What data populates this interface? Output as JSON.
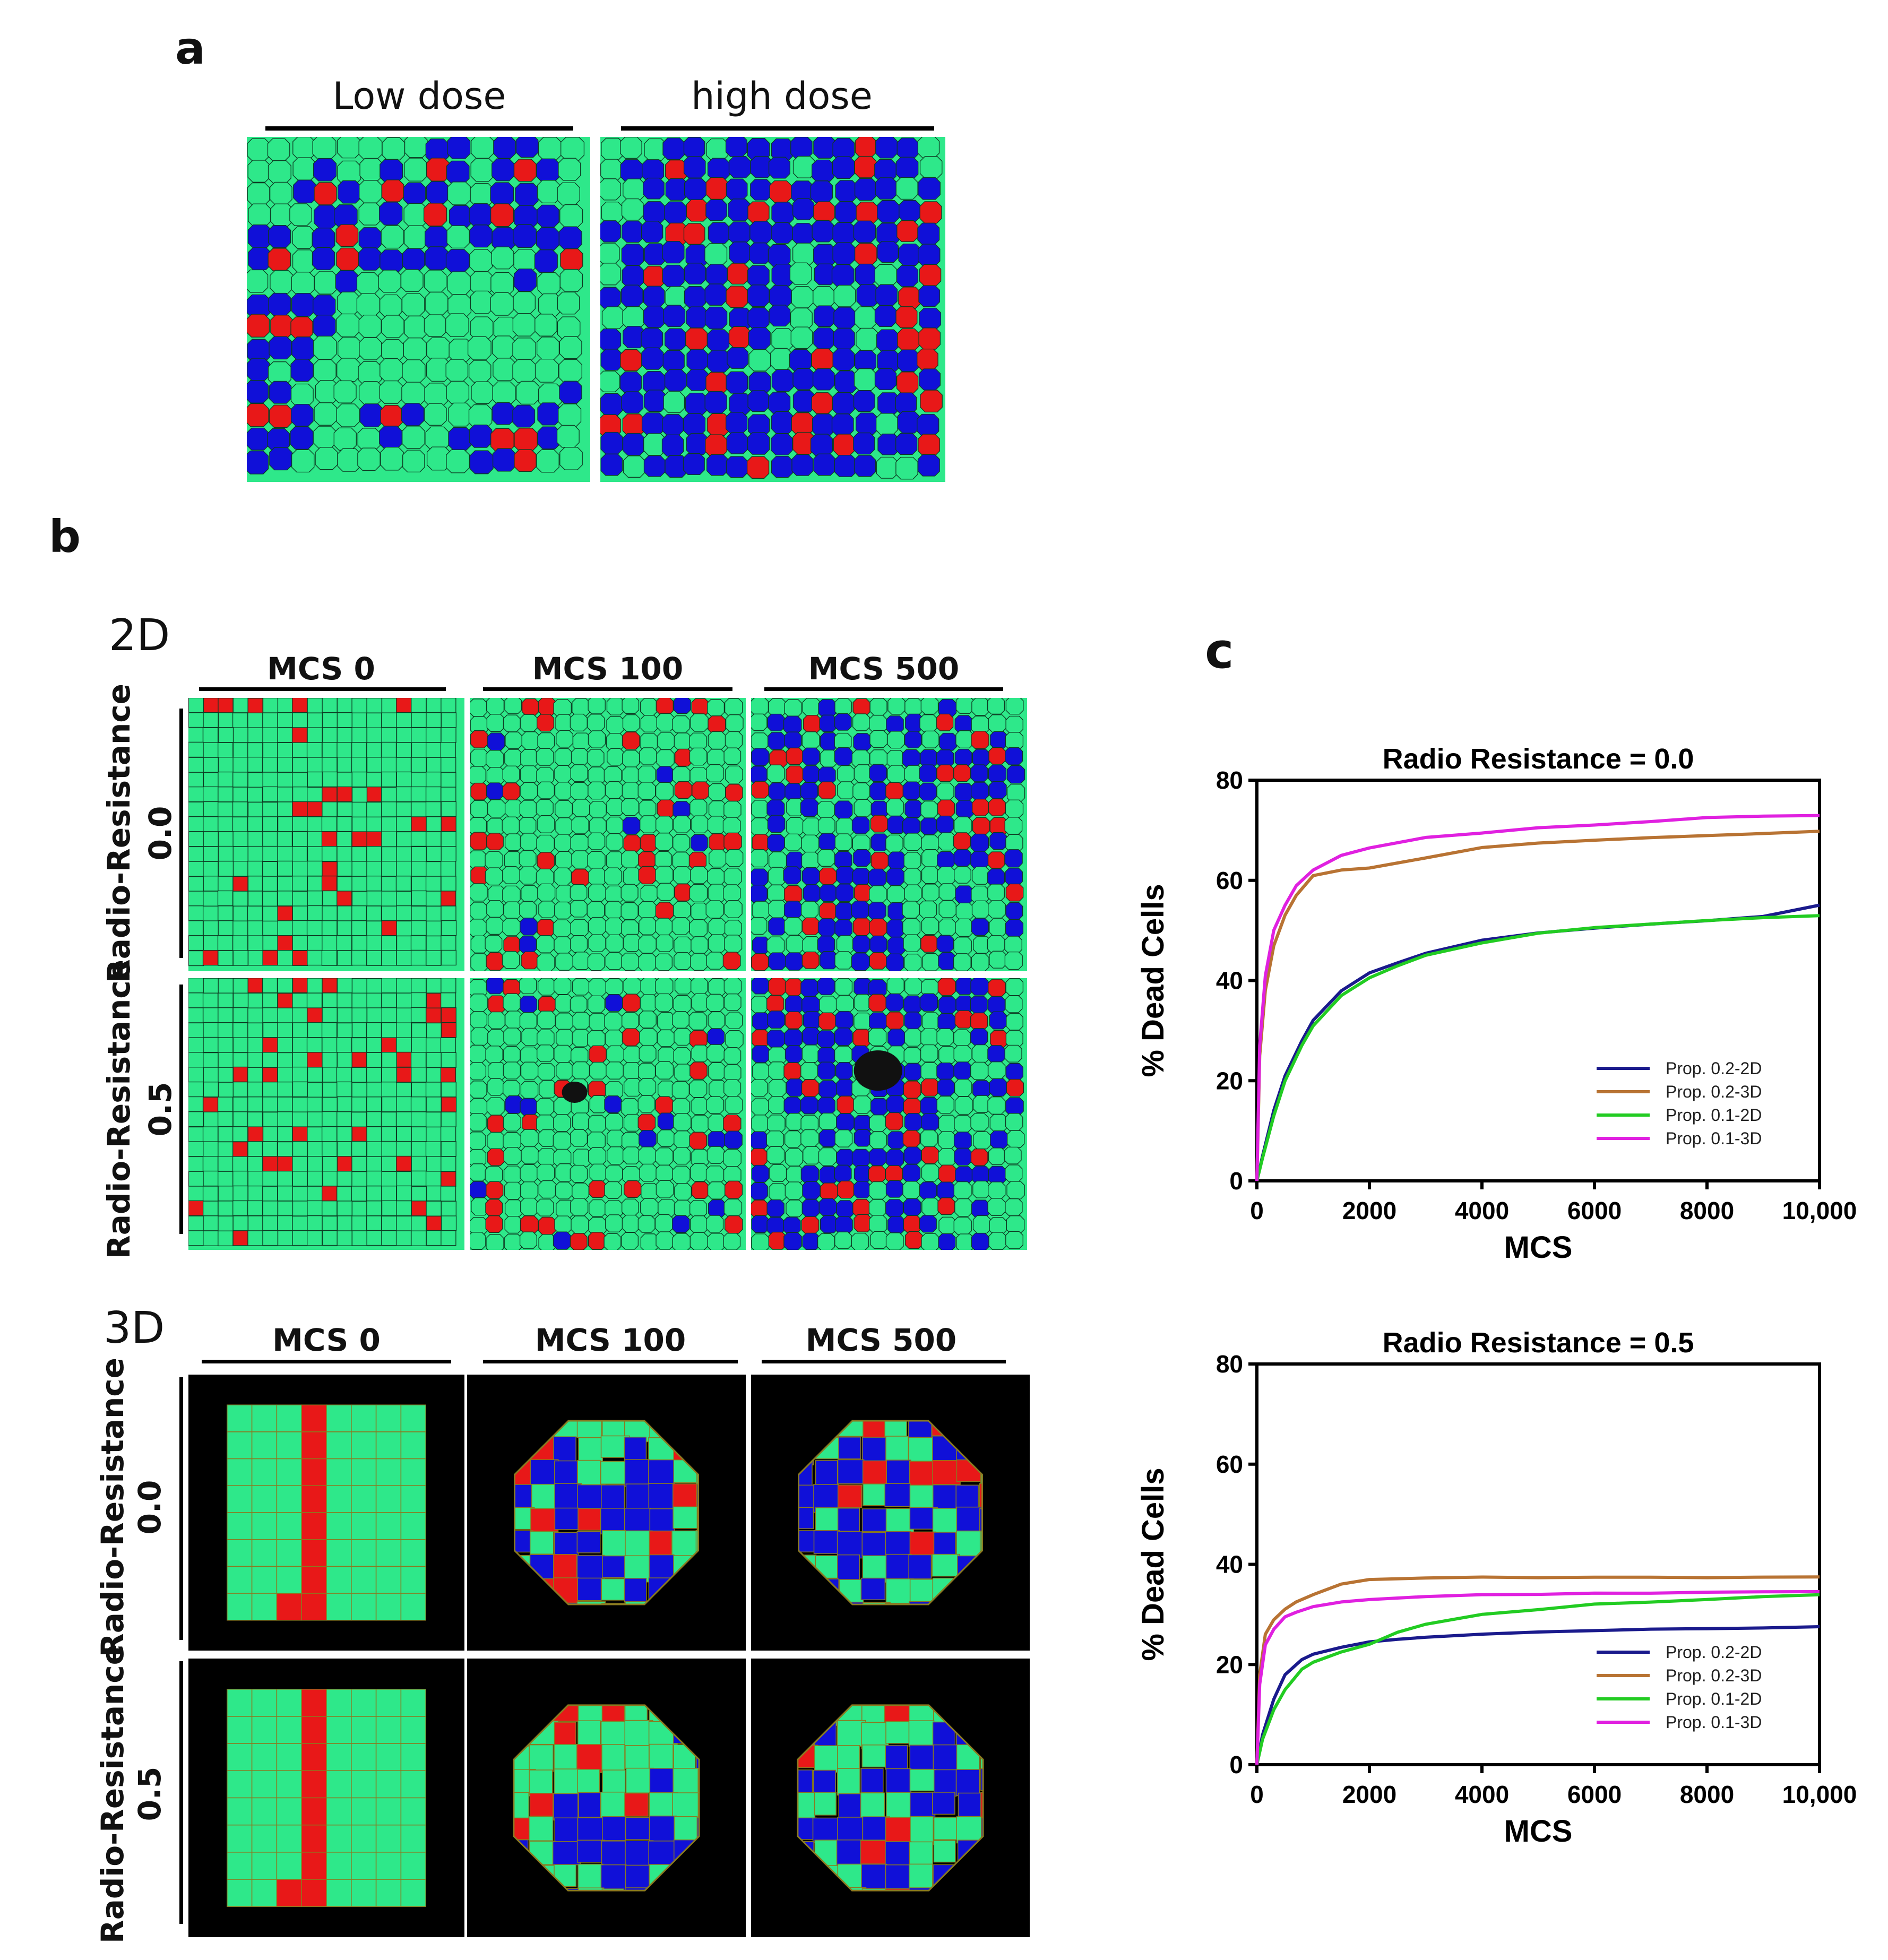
{
  "panels": {
    "a": {
      "letter": "a",
      "conditions": [
        "Low dose",
        "high dose"
      ]
    },
    "b": {
      "letter": "b",
      "dim_2d": "2D",
      "dim_3d": "3D",
      "columns": [
        "MCS 0",
        "MCS 100",
        "MCS 500"
      ],
      "rows": [
        {
          "label": "Radio-Resistance",
          "value": "0.0"
        },
        {
          "label": "Radio-Resistance",
          "value": "0.5"
        }
      ]
    },
    "c": {
      "letter": "c"
    }
  },
  "colors": {
    "healthy": "#2ee88a",
    "damaged": "#1010d8",
    "dead": "#e81818",
    "background_3d": "#000000",
    "prop_02_2d": "#1a1a8c",
    "prop_02_3d": "#b87333",
    "prop_01_2d": "#22cc22",
    "prop_01_3d": "#e020e0"
  },
  "chart_data": [
    {
      "type": "line",
      "title": "Radio Resistance = 0.0",
      "xlabel": "MCS",
      "ylabel": "% Dead Cells",
      "xlim": [
        0,
        10000
      ],
      "ylim": [
        0,
        80
      ],
      "xticks": [
        "0",
        "2000",
        "4000",
        "6000",
        "8000",
        "10,000"
      ],
      "xtick_values": [
        0,
        2000,
        4000,
        6000,
        8000,
        10000
      ],
      "yticks": [
        "0",
        "20",
        "40",
        "60",
        "80"
      ],
      "ytick_values": [
        0,
        20,
        40,
        60,
        80
      ],
      "legend_position": "bottom-right",
      "series": [
        {
          "name": "Prop. 0.2-2D",
          "color": "#1a1a8c",
          "x": [
            0,
            100,
            300,
            500,
            800,
            1000,
            1500,
            2000,
            2500,
            3000,
            4000,
            5000,
            6000,
            7000,
            8000,
            9000,
            10000
          ],
          "y": [
            0,
            5,
            14,
            21,
            28,
            32,
            38,
            41.5,
            43.5,
            45.5,
            48,
            49.5,
            50.5,
            51.2,
            52,
            52.8,
            55
          ]
        },
        {
          "name": "Prop. 0.2-3D",
          "color": "#b87333",
          "x": [
            0,
            50,
            150,
            300,
            500,
            700,
            1000,
            1500,
            2000,
            3000,
            4000,
            5000,
            6000,
            7000,
            8000,
            9000,
            10000
          ],
          "y": [
            0,
            25,
            38,
            47,
            53,
            57,
            61,
            62,
            62.5,
            64.5,
            66.5,
            67.5,
            68,
            68.5,
            69,
            69.3,
            69.8
          ]
        },
        {
          "name": "Prop. 0.1-2D",
          "color": "#22cc22",
          "x": [
            0,
            100,
            300,
            500,
            800,
            1000,
            1500,
            2000,
            2500,
            3000,
            4000,
            5000,
            6000,
            7000,
            8000,
            9000,
            10000
          ],
          "y": [
            0,
            4.5,
            13,
            20,
            27,
            31,
            37,
            40.5,
            43,
            45,
            47.5,
            49.5,
            50.5,
            51.3,
            52,
            52.5,
            53
          ]
        },
        {
          "name": "Prop. 0.1-3D",
          "color": "#e020e0",
          "x": [
            0,
            50,
            150,
            300,
            500,
            700,
            1000,
            1500,
            2000,
            3000,
            4000,
            5000,
            6000,
            7000,
            8000,
            9000,
            10000
          ],
          "y": [
            0,
            27,
            41,
            50,
            55,
            59,
            62,
            65,
            66.5,
            68.5,
            69.5,
            70.5,
            71,
            71.8,
            72.5,
            72.8,
            73
          ]
        }
      ]
    },
    {
      "type": "line",
      "title": "Radio Resistance = 0.5",
      "xlabel": "MCS",
      "ylabel": "% Dead Cells",
      "xlim": [
        0,
        10000
      ],
      "ylim": [
        0,
        80
      ],
      "xticks": [
        "0",
        "2000",
        "4000",
        "6000",
        "8000",
        "10,000"
      ],
      "xtick_values": [
        0,
        2000,
        4000,
        6000,
        8000,
        10000
      ],
      "yticks": [
        "0",
        "20",
        "40",
        "60",
        "80"
      ],
      "ytick_values": [
        0,
        20,
        40,
        60,
        80
      ],
      "legend_position": "bottom-right",
      "series": [
        {
          "name": "Prop. 0.2-2D",
          "color": "#1a1a8c",
          "x": [
            0,
            100,
            300,
            500,
            800,
            1000,
            1500,
            2000,
            2500,
            3000,
            4000,
            5000,
            6000,
            7000,
            8000,
            9000,
            10000
          ],
          "y": [
            0,
            6,
            13,
            18,
            21,
            22,
            23.5,
            24.5,
            25,
            25.5,
            26,
            26.5,
            26.8,
            27,
            27.2,
            27.3,
            27.5
          ]
        },
        {
          "name": "Prop. 0.2-3D",
          "color": "#b87333",
          "x": [
            0,
            50,
            150,
            300,
            500,
            700,
            1000,
            1500,
            2000,
            3000,
            4000,
            5000,
            6000,
            7000,
            8000,
            9000,
            10000
          ],
          "y": [
            0,
            18,
            26,
            29,
            31,
            32.5,
            34,
            36,
            37,
            37.3,
            37.4,
            37.4,
            37.4,
            37.4,
            37.4,
            37.4,
            37.5
          ]
        },
        {
          "name": "Prop. 0.1-2D",
          "color": "#22cc22",
          "x": [
            0,
            100,
            300,
            500,
            800,
            1000,
            1500,
            2000,
            2500,
            3000,
            4000,
            5000,
            6000,
            7000,
            8000,
            9000,
            10000
          ],
          "y": [
            0,
            5,
            11,
            15,
            19,
            20.5,
            22.5,
            24,
            26.5,
            28,
            30,
            31,
            32,
            32.5,
            33,
            33.5,
            34
          ]
        },
        {
          "name": "Prop. 0.1-3D",
          "color": "#e020e0",
          "x": [
            0,
            50,
            150,
            300,
            500,
            700,
            1000,
            1500,
            2000,
            3000,
            4000,
            5000,
            6000,
            7000,
            8000,
            9000,
            10000
          ],
          "y": [
            0,
            16,
            24,
            27,
            29.5,
            30.5,
            31.5,
            32.5,
            33,
            33.5,
            34,
            34,
            34.2,
            34.3,
            34.4,
            34.5,
            34.6
          ]
        }
      ]
    }
  ]
}
